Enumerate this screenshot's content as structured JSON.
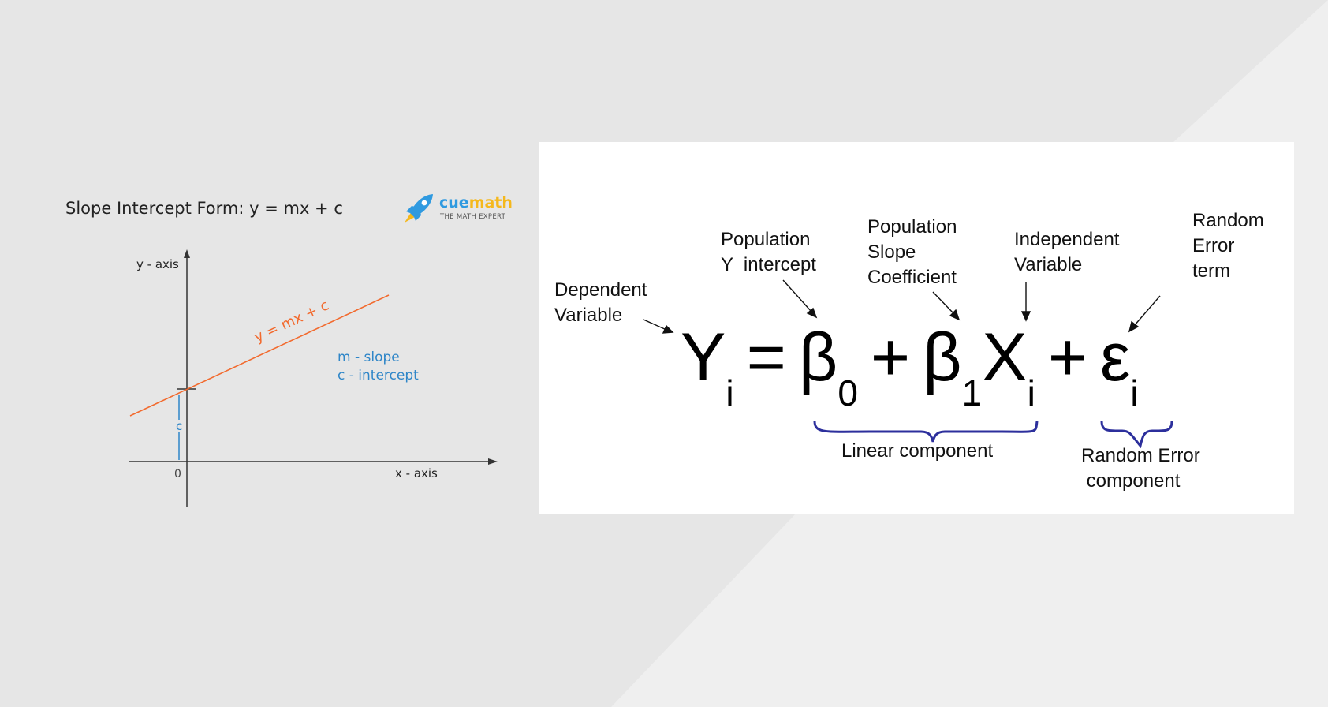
{
  "left_panel": {
    "title": "Slope Intercept Form: y = mx + c",
    "brand": {
      "name_part1": "cue",
      "name_part2": "math",
      "tagline": "THE MATH EXPERT",
      "icon": "rocket-icon"
    },
    "graph": {
      "y_axis_label": "y - axis",
      "x_axis_label": "x - axis",
      "origin_label": "0",
      "line_label": "y = mx + c",
      "intercept_label": "c",
      "legend_slope": "m - slope",
      "legend_intercept": "c - intercept"
    }
  },
  "right_panel": {
    "equation": {
      "y": "Y",
      "y_sub": "i",
      "equals": "=",
      "b0": "β",
      "b0_sub": "0",
      "plus1": "+",
      "b1": "β",
      "b1_sub": "1",
      "x": "X",
      "x_sub": "i",
      "plus2": "+",
      "eps": "ε",
      "eps_sub": "i"
    },
    "annotations": {
      "dependent": "Dependent\nVariable",
      "intercept": "Population\nY  intercept",
      "slope": "Population\nSlope\nCoefficient",
      "independent": "Independent\nVariable",
      "error_term": "Random\nError\nterm",
      "linear_component": "Linear component",
      "random_component": "Random Error\n component"
    }
  },
  "colors": {
    "background": "#e6e6e6",
    "wedge": "#efefef",
    "line": "#f26a2e",
    "legend": "#2f86c8",
    "brace": "#2c2f9c",
    "axis": "#333333"
  }
}
